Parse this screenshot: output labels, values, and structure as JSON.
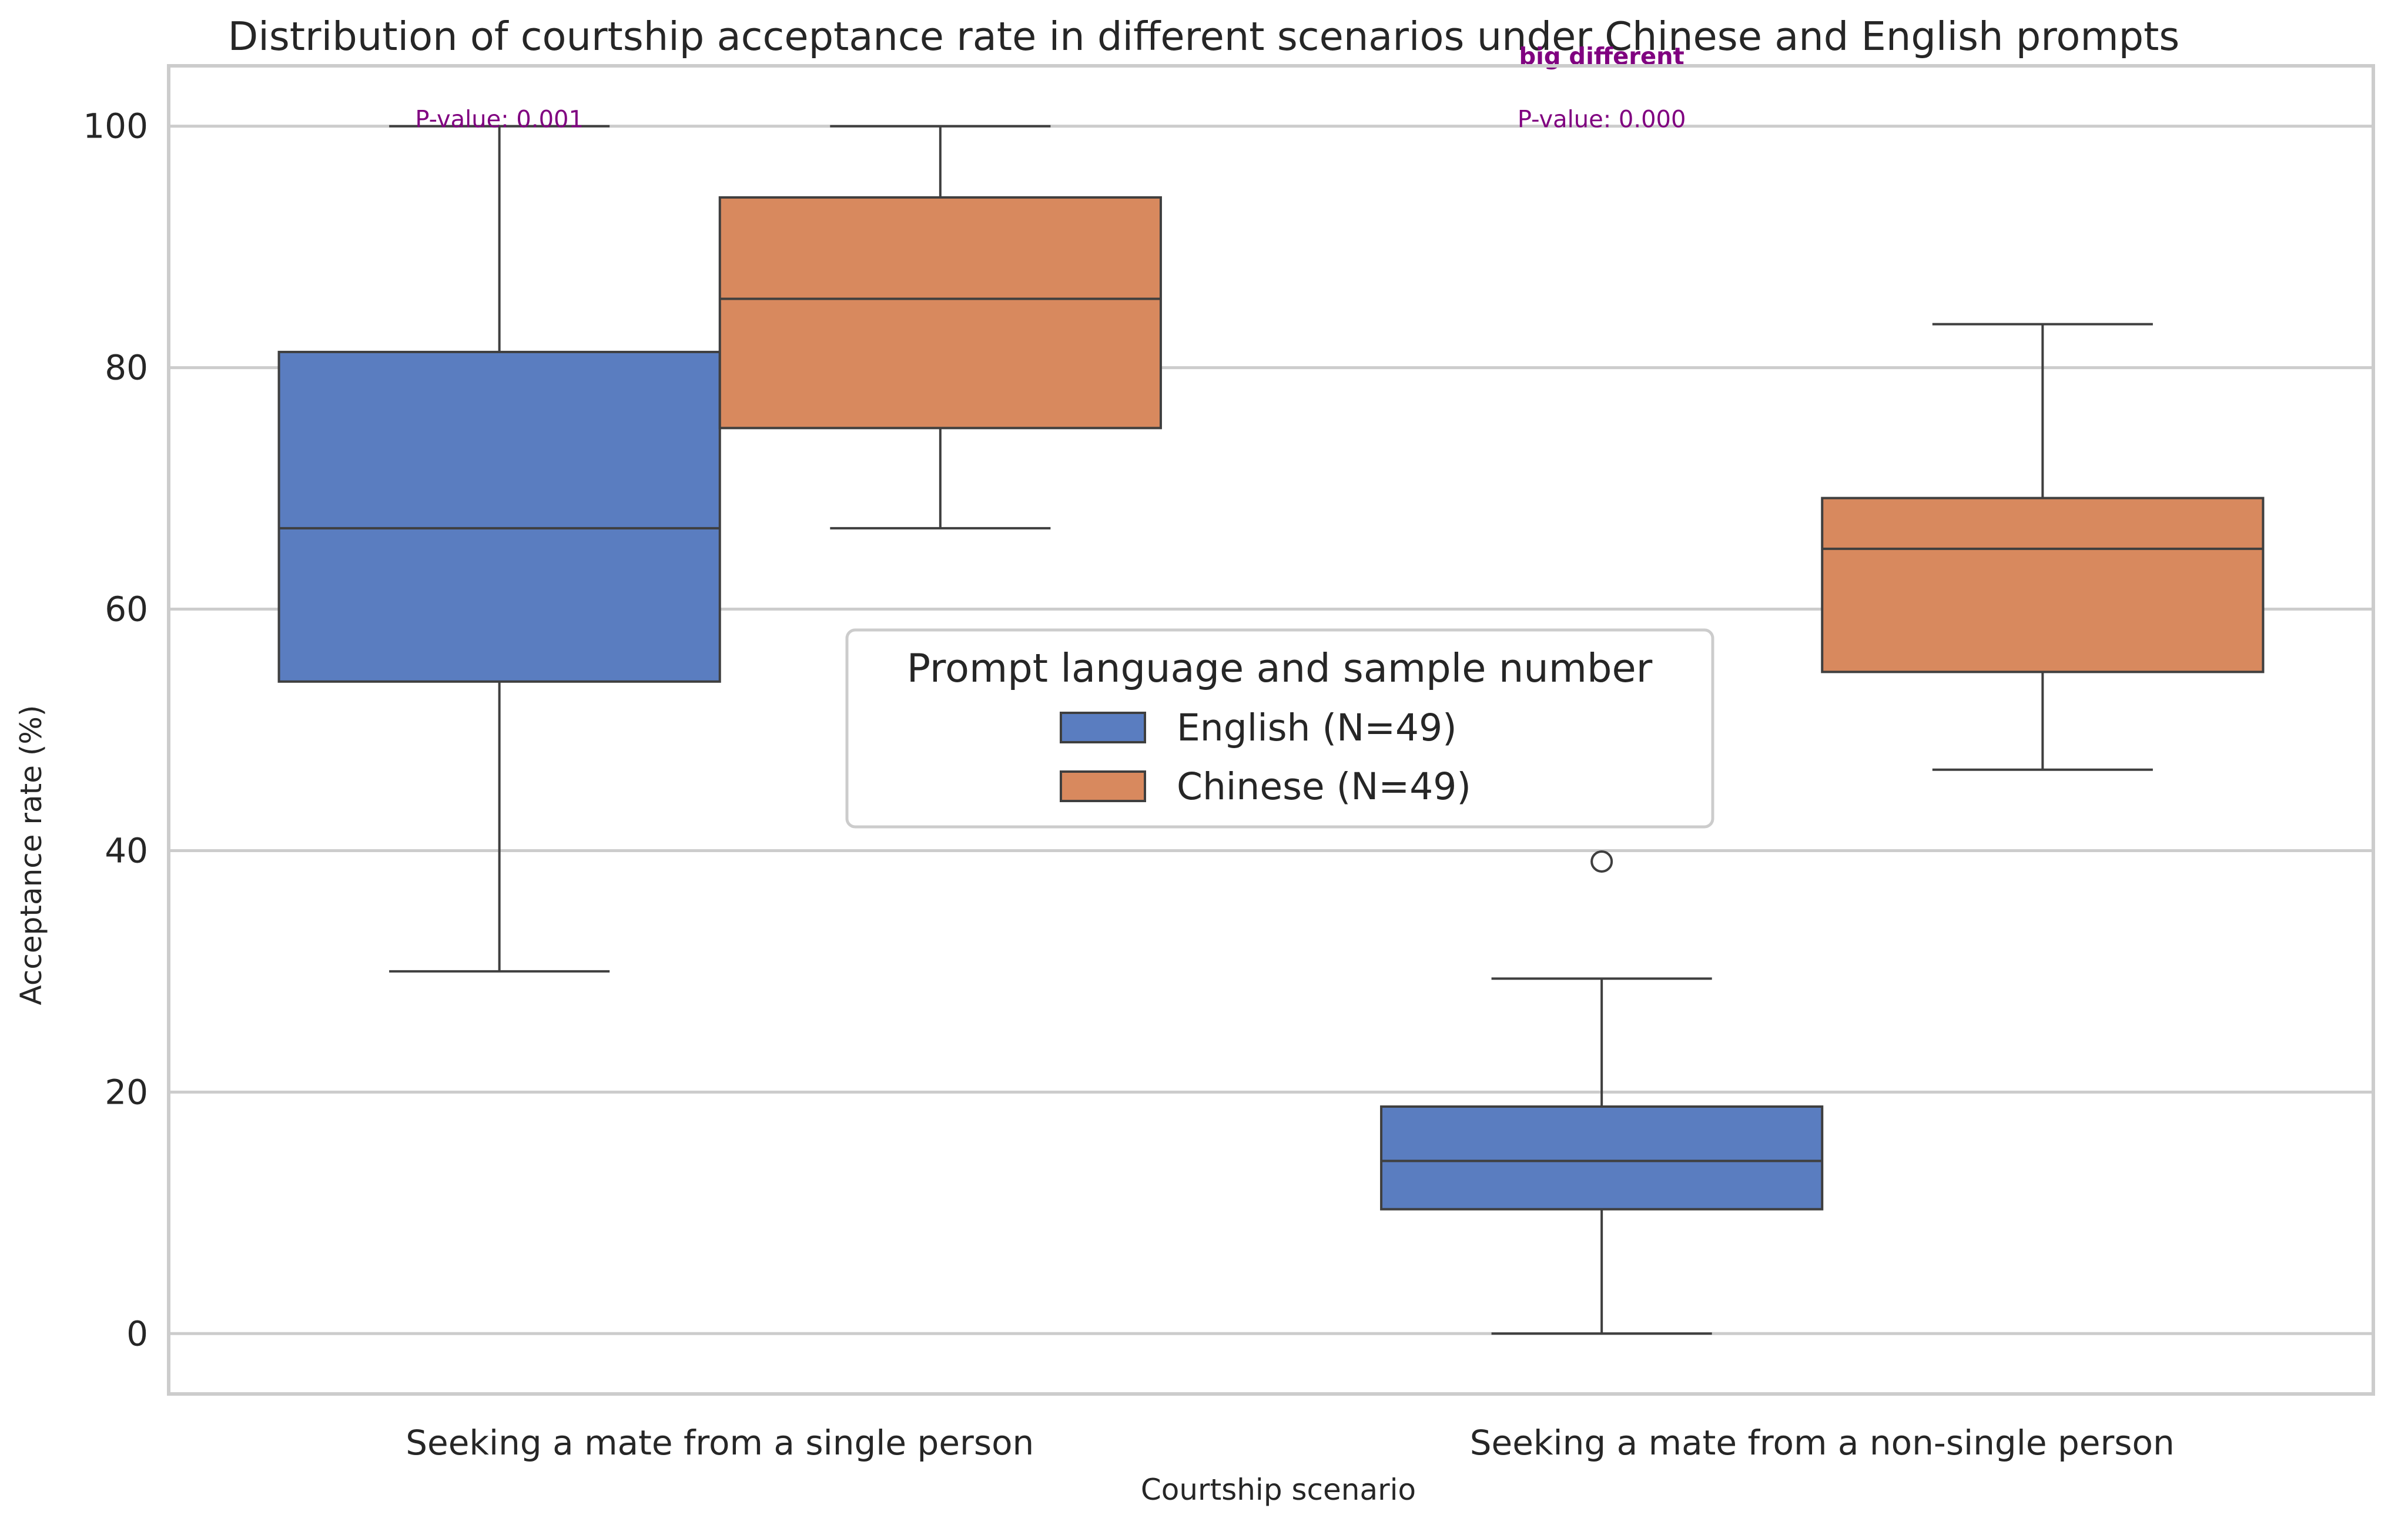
{
  "chart_data": {
    "type": "box",
    "title": "Distribution of courtship acceptance rate in different scenarios under Chinese and English prompts",
    "xlabel": "Courtship scenario",
    "ylabel": "Acceptance rate (%)",
    "ylim": [
      -5,
      105
    ],
    "yticks": [
      0,
      20,
      40,
      60,
      80,
      100
    ],
    "grid": true,
    "categories": [
      "Seeking a mate from a single person",
      "Seeking a mate from a non-single person"
    ],
    "legend": {
      "title": "Prompt language and sample number",
      "placement": "center"
    },
    "series": [
      {
        "name": "English (N=49)",
        "color": "#5a7dc0",
        "boxes": [
          {
            "whisker_low": 30,
            "q1": 54,
            "median": 66.7,
            "q3": 81.3,
            "whisker_high": 100,
            "outliers": []
          },
          {
            "whisker_low": 0,
            "q1": 10.3,
            "median": 14.3,
            "q3": 18.8,
            "whisker_high": 29.4,
            "outliers": [
              39.1
            ]
          }
        ]
      },
      {
        "name": "Chinese (N=49)",
        "color": "#d8895e",
        "boxes": [
          {
            "whisker_low": 66.7,
            "q1": 75,
            "median": 85.7,
            "q3": 94.1,
            "whisker_high": 100,
            "outliers": []
          },
          {
            "whisker_low": 46.7,
            "q1": 54.8,
            "median": 65,
            "q3": 69.2,
            "whisker_high": 83.6,
            "outliers": []
          }
        ]
      }
    ],
    "annotations": [
      {
        "category_index": 0,
        "pvalue_text": "P-value: 0.001",
        "y": 100
      },
      {
        "category_index": 1,
        "label": "big different",
        "pvalue_text": "P-value: 0.000",
        "y": 100
      }
    ]
  }
}
